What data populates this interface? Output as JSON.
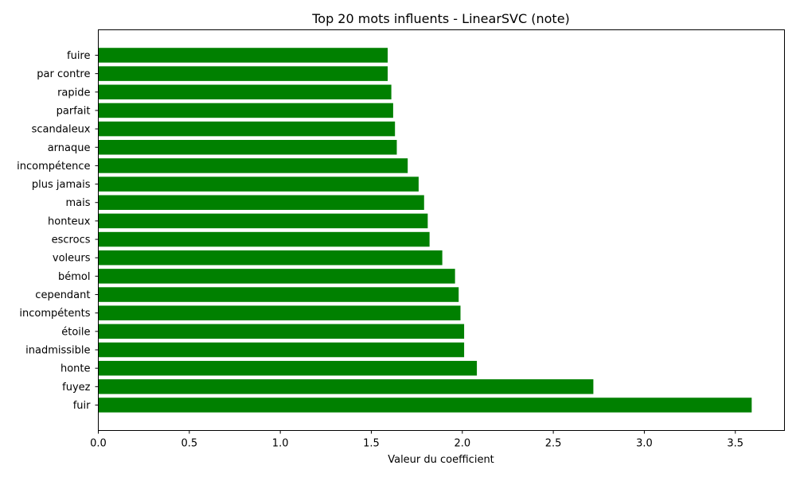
{
  "chart_data": {
    "type": "bar",
    "orientation": "horizontal",
    "title": "Top 20 mots influents - LinearSVC (note)",
    "xlabel": "Valeur du coefficient",
    "ylabel": "",
    "xlim": [
      0,
      3.77
    ],
    "xticks": [
      "0.0",
      "0.5",
      "1.0",
      "1.5",
      "2.0",
      "2.5",
      "3.0",
      "3.5"
    ],
    "grid": false,
    "bar_color": "#008000",
    "categories": [
      "fuir",
      "fuyez",
      "honte",
      "inadmissible",
      "étoile",
      "incompétents",
      "cependant",
      "bémol",
      "voleurs",
      "escrocs",
      "honteux",
      "mais",
      "plus jamais",
      "incompétence",
      "arnaque",
      "scandaleux",
      "parfait",
      "rapide",
      "par contre",
      "fuire"
    ],
    "values": [
      3.59,
      2.72,
      2.08,
      2.01,
      2.01,
      1.99,
      1.98,
      1.96,
      1.89,
      1.82,
      1.81,
      1.79,
      1.76,
      1.7,
      1.64,
      1.63,
      1.62,
      1.61,
      1.59,
      1.59
    ]
  }
}
